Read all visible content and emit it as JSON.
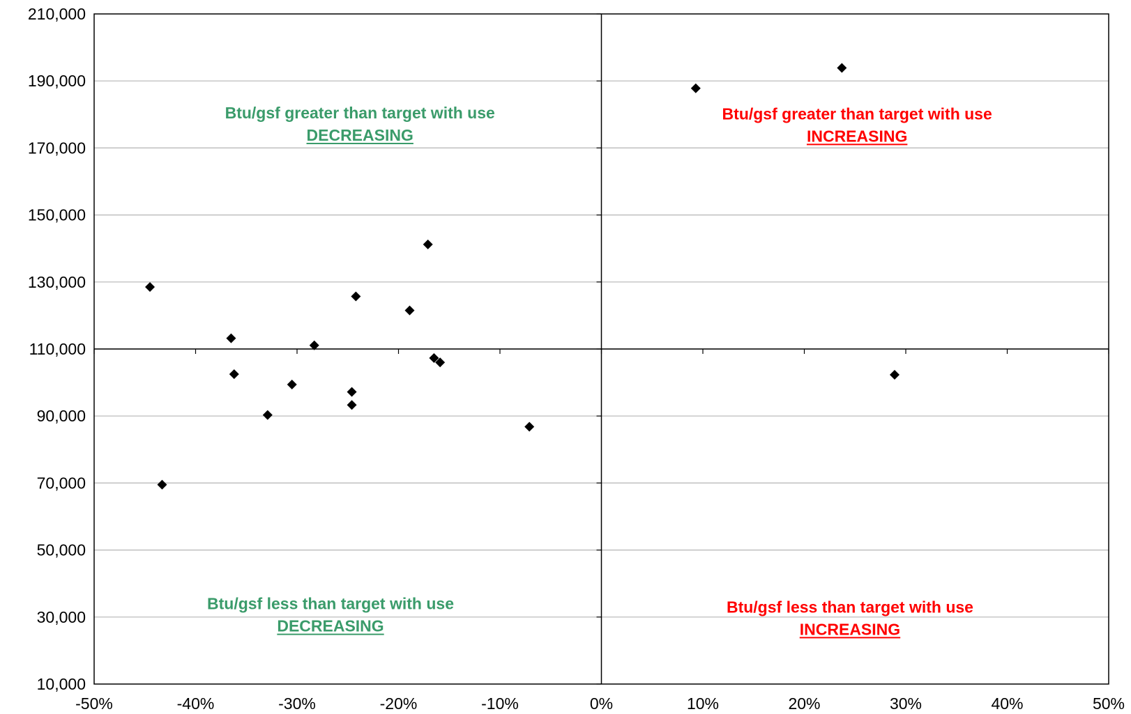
{
  "chart_data": {
    "type": "scatter",
    "xlim": [
      -0.5,
      0.5
    ],
    "ylim": [
      10000,
      210000
    ],
    "x_ticks": [
      {
        "value": -0.5,
        "label": "-50%"
      },
      {
        "value": -0.4,
        "label": "-40%"
      },
      {
        "value": -0.3,
        "label": "-30%"
      },
      {
        "value": -0.2,
        "label": "-20%"
      },
      {
        "value": -0.1,
        "label": "-10%"
      },
      {
        "value": 0.0,
        "label": "0%"
      },
      {
        "value": 0.1,
        "label": "10%"
      },
      {
        "value": 0.2,
        "label": "20%"
      },
      {
        "value": 0.3,
        "label": "30%"
      },
      {
        "value": 0.4,
        "label": "40%"
      },
      {
        "value": 0.5,
        "label": "50%"
      }
    ],
    "y_ticks": [
      {
        "value": 10000,
        "label": "10,000"
      },
      {
        "value": 30000,
        "label": "30,000"
      },
      {
        "value": 50000,
        "label": "50,000"
      },
      {
        "value": 70000,
        "label": "70,000"
      },
      {
        "value": 90000,
        "label": "90,000"
      },
      {
        "value": 110000,
        "label": "110,000"
      },
      {
        "value": 130000,
        "label": "130,000"
      },
      {
        "value": 150000,
        "label": "150,000"
      },
      {
        "value": 170000,
        "label": "170,000"
      },
      {
        "value": 190000,
        "label": "190,000"
      },
      {
        "value": 210000,
        "label": "210,000"
      }
    ],
    "grid": {
      "horizontal": true,
      "vertical": false
    },
    "reference_lines": {
      "x": 0.0,
      "y": 110000
    },
    "marker": "diamond",
    "marker_color": "#000000",
    "points": [
      {
        "x": -0.445,
        "y": 128500
      },
      {
        "x": -0.433,
        "y": 69500
      },
      {
        "x": -0.365,
        "y": 113200
      },
      {
        "x": -0.362,
        "y": 102500
      },
      {
        "x": -0.329,
        "y": 90300
      },
      {
        "x": -0.305,
        "y": 99400
      },
      {
        "x": -0.283,
        "y": 111100
      },
      {
        "x": -0.246,
        "y": 97200
      },
      {
        "x": -0.246,
        "y": 93300
      },
      {
        "x": -0.242,
        "y": 125700
      },
      {
        "x": -0.189,
        "y": 121500
      },
      {
        "x": -0.171,
        "y": 141200
      },
      {
        "x": -0.165,
        "y": 107300
      },
      {
        "x": -0.159,
        "y": 106000
      },
      {
        "x": -0.071,
        "y": 86800
      },
      {
        "x": 0.093,
        "y": 187800
      },
      {
        "x": 0.237,
        "y": 193900
      },
      {
        "x": 0.289,
        "y": 102300
      }
    ],
    "annotations": [
      {
        "id": "top-left",
        "line1": "Btu/gsf  greater than target with  use",
        "line2": "DECREASING",
        "color": "#3a9b6a",
        "anchor_x": -0.238,
        "anchor_y": 175500
      },
      {
        "id": "top-right",
        "line1": "Btu/gsf  greater than target with  use",
        "line2": "INCREASING",
        "color": "#ff0000",
        "anchor_x": 0.252,
        "anchor_y": 175200
      },
      {
        "id": "bottom-left",
        "line1": "Btu/gsf  less than target with  use",
        "line2": "DECREASING",
        "color": "#3a9b6a",
        "anchor_x": -0.267,
        "anchor_y": 29000
      },
      {
        "id": "bottom-right",
        "line1": "Btu/gsf  less than target with  use",
        "line2": "INCREASING",
        "color": "#ff0000",
        "anchor_x": 0.245,
        "anchor_y": 28000
      }
    ]
  }
}
